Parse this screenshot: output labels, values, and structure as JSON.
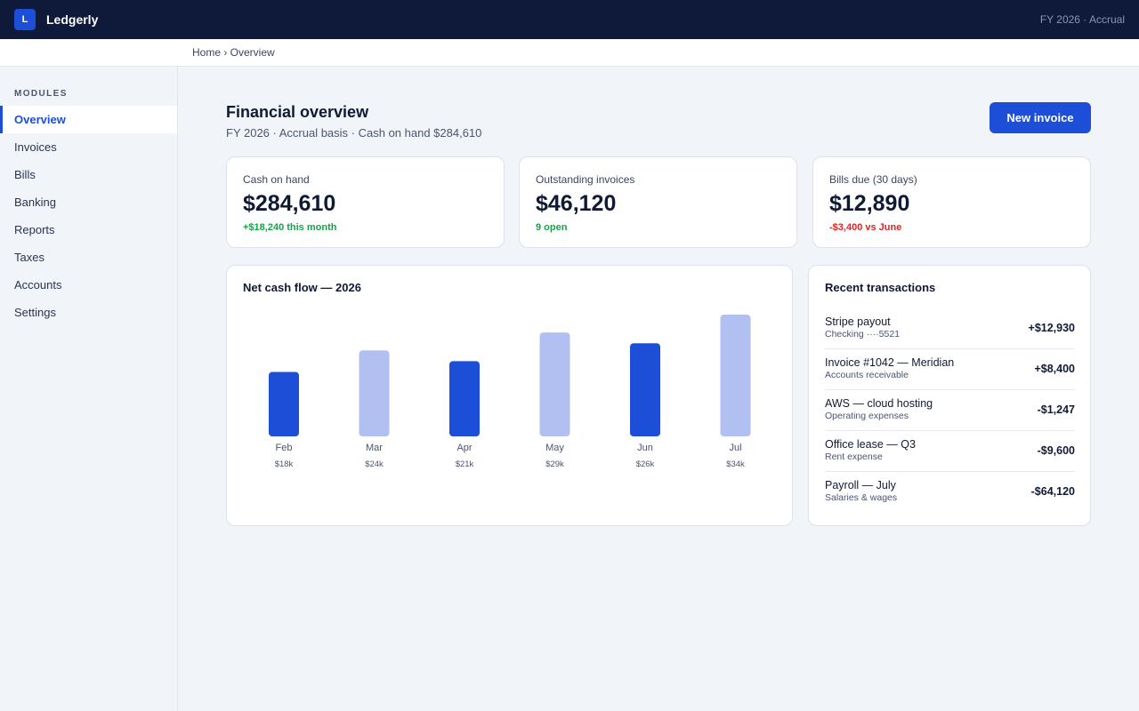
{
  "app": {
    "logo_letter": "L",
    "name": "Ledgerly",
    "period_label": "FY 2026 · Accrual"
  },
  "breadcrumb": "Home › Overview",
  "sidebar": {
    "heading": "MODULES",
    "items": [
      {
        "label": "Overview",
        "active": true
      },
      {
        "label": "Invoices"
      },
      {
        "label": "Bills"
      },
      {
        "label": "Banking"
      },
      {
        "label": "Reports"
      },
      {
        "label": "Taxes"
      },
      {
        "label": "Accounts"
      },
      {
        "label": "Settings"
      }
    ]
  },
  "header": {
    "title": "Financial overview",
    "subtitle": "FY 2026 · Accrual basis · Cash on hand $284,610",
    "new_invoice_label": "New invoice"
  },
  "kpis": [
    {
      "label": "Cash on hand",
      "value": "$284,610",
      "delta": "+$18,240 this month",
      "tone": "pos"
    },
    {
      "label": "Outstanding invoices",
      "value": "$46,120",
      "delta": "9 open",
      "tone": "pos"
    },
    {
      "label": "Bills due (30 days)",
      "value": "$12,890",
      "delta": "-$3,400 vs June",
      "tone": "neg"
    }
  ],
  "chart_data": {
    "type": "bar",
    "title": "Net cash flow — 2026",
    "categories": [
      "Feb",
      "Mar",
      "Apr",
      "May",
      "Jun",
      "Jul"
    ],
    "values": [
      18,
      24,
      21,
      29,
      26,
      34
    ],
    "value_labels": [
      "$18k",
      "$24k",
      "$21k",
      "$29k",
      "$26k",
      "$34k"
    ],
    "unit": "$k",
    "bar_colors": [
      "#1d4ed8",
      "#b1c0f0",
      "#1d4ed8",
      "#b1c0f0",
      "#1d4ed8",
      "#b1c0f0"
    ],
    "grid": false
  },
  "transactions": {
    "title": "Recent transactions",
    "items": [
      {
        "name": "Stripe payout",
        "sub": "Checking ····5521",
        "amount": "+$12,930"
      },
      {
        "name": "Invoice #1042 — Meridian",
        "sub": "Accounts receivable",
        "amount": "+$8,400"
      },
      {
        "name": "AWS — cloud hosting",
        "sub": "Operating expenses",
        "amount": "-$1,247"
      },
      {
        "name": "Office lease — Q3",
        "sub": "Rent expense",
        "amount": "-$9,600"
      },
      {
        "name": "Payroll — July",
        "sub": "Salaries & wages",
        "amount": "-$64,120"
      }
    ]
  },
  "colors": {
    "brand": "#1d4ed8",
    "topbar": "#0f1a3a",
    "positive": "#16a34a",
    "negative": "#dc2626"
  }
}
